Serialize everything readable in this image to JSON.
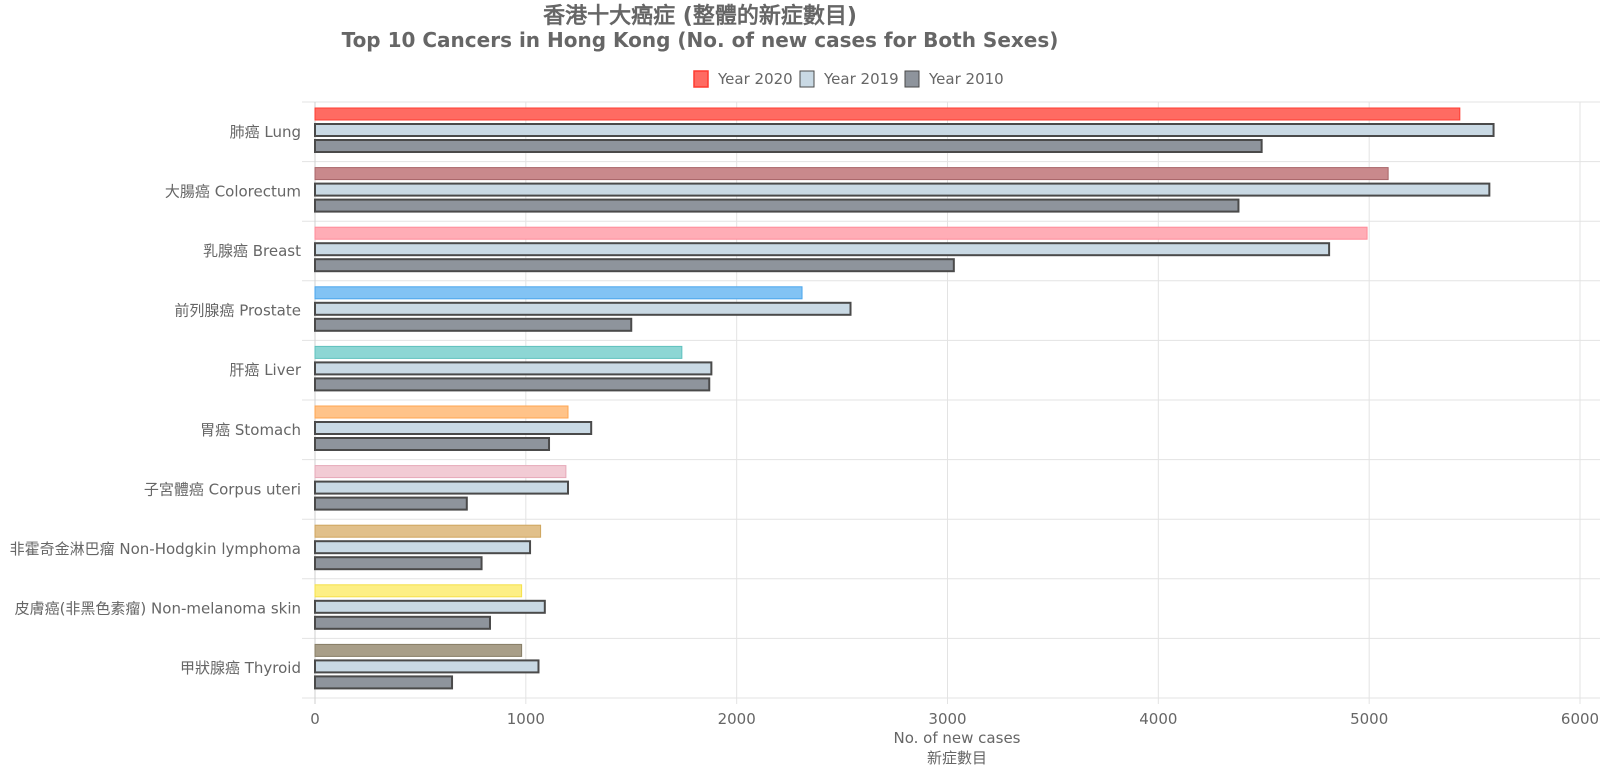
{
  "chart_data": {
    "type": "bar",
    "orientation": "horizontal",
    "title": "香港十大癌症 (整體的新症數目)",
    "subtitle": "Top 10 Cancers in Hong Kong (No. of new cases for Both Sexes)",
    "xlabel": "No. of new cases",
    "xlabel_zh": "新症數目",
    "xlim": [
      0,
      6000
    ],
    "x_ticks": [
      "0",
      "1000",
      "2000",
      "3000",
      "4000",
      "5000",
      "6000"
    ],
    "grid": true,
    "legend_position": "top",
    "categories": [
      "肺癌 Lung",
      "大腸癌 Colorectum",
      "乳腺癌 Breast",
      "前列腺癌 Prostate",
      "肝癌 Liver",
      "胃癌 Stomach",
      "子宮體癌 Corpus uteri",
      "非霍奇金淋巴瘤 Non-Hodgkin lymphoma",
      "皮膚癌(非黑色素瘤) Non-melanoma skin",
      "甲狀腺癌 Thyroid"
    ],
    "series": [
      {
        "name": "Year 2020",
        "values": [
          5430,
          5090,
          4990,
          2310,
          1740,
          1200,
          1190,
          1070,
          980,
          980
        ],
        "colors": [
          "#ff6b62",
          "#c9898c",
          "#ffadb6",
          "#82c3f4",
          "#8dd6d4",
          "#ffc389",
          "#f2cbd4",
          "#e1c08a",
          "#fdef84",
          "#a89e88"
        ],
        "border_colors": [
          "#ff3b30",
          "#a86468",
          "#ff8a98",
          "#4aa6ec",
          "#5fc1be",
          "#ffa550",
          "#e6a9b8",
          "#cfa55e",
          "#f5e04a",
          "#877d66"
        ],
        "legend_color": "#ff6b62",
        "legend_border": "#ff3b30"
      },
      {
        "name": "Year 2019",
        "values": [
          5590,
          5570,
          4810,
          2540,
          1880,
          1310,
          1200,
          1020,
          1090,
          1060
        ],
        "color": "#c9d9e4",
        "border_color": "#4a4a4a"
      },
      {
        "name": "Year 2010",
        "values": [
          4490,
          4380,
          3030,
          1500,
          1870,
          1110,
          720,
          790,
          830,
          650
        ],
        "color": "#8e949c",
        "border_color": "#4a4a4a"
      }
    ]
  }
}
